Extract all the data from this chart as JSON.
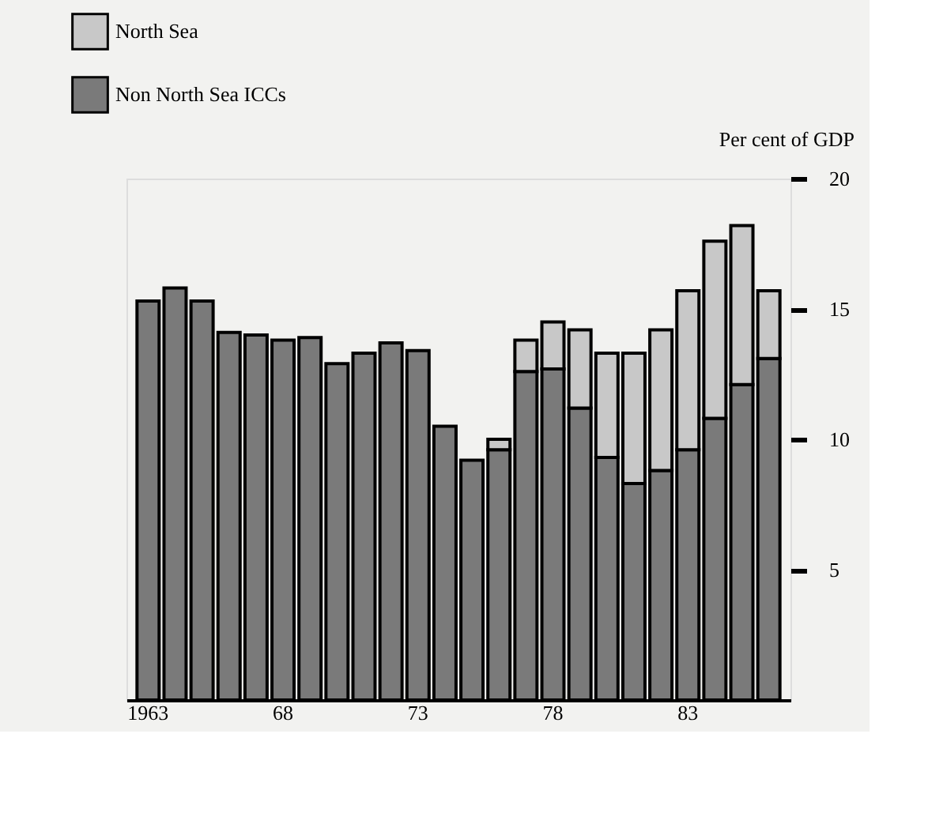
{
  "chart_data": {
    "type": "bar",
    "stacked": true,
    "categories": [
      "1963",
      null,
      null,
      null,
      null,
      "68",
      null,
      null,
      null,
      null,
      "73",
      null,
      null,
      null,
      null,
      "78",
      null,
      null,
      null,
      null,
      "83",
      null,
      null,
      null
    ],
    "series": [
      {
        "name": "Non North Sea ICCs",
        "color": "#7a7a7a",
        "values": [
          15.3,
          15.8,
          15.3,
          14.1,
          14.0,
          13.8,
          13.9,
          12.9,
          13.3,
          13.7,
          13.4,
          10.5,
          9.2,
          9.6,
          12.6,
          12.7,
          11.2,
          9.3,
          8.3,
          8.8,
          9.6,
          10.8,
          12.1,
          13.1
        ]
      },
      {
        "name": "North Sea",
        "color": "#c8c8c8",
        "values": [
          0,
          0,
          0,
          0,
          0,
          0,
          0,
          0,
          0,
          0,
          0,
          0,
          0,
          0.4,
          1.2,
          1.8,
          3.0,
          4.0,
          5.0,
          5.4,
          6.1,
          6.8,
          6.1,
          2.6
        ]
      }
    ],
    "ylabel": "Per cent of GDP",
    "ylim": [
      0,
      20
    ],
    "yticks": [
      5,
      10,
      15,
      20
    ],
    "grid": false,
    "legend": "top left"
  }
}
